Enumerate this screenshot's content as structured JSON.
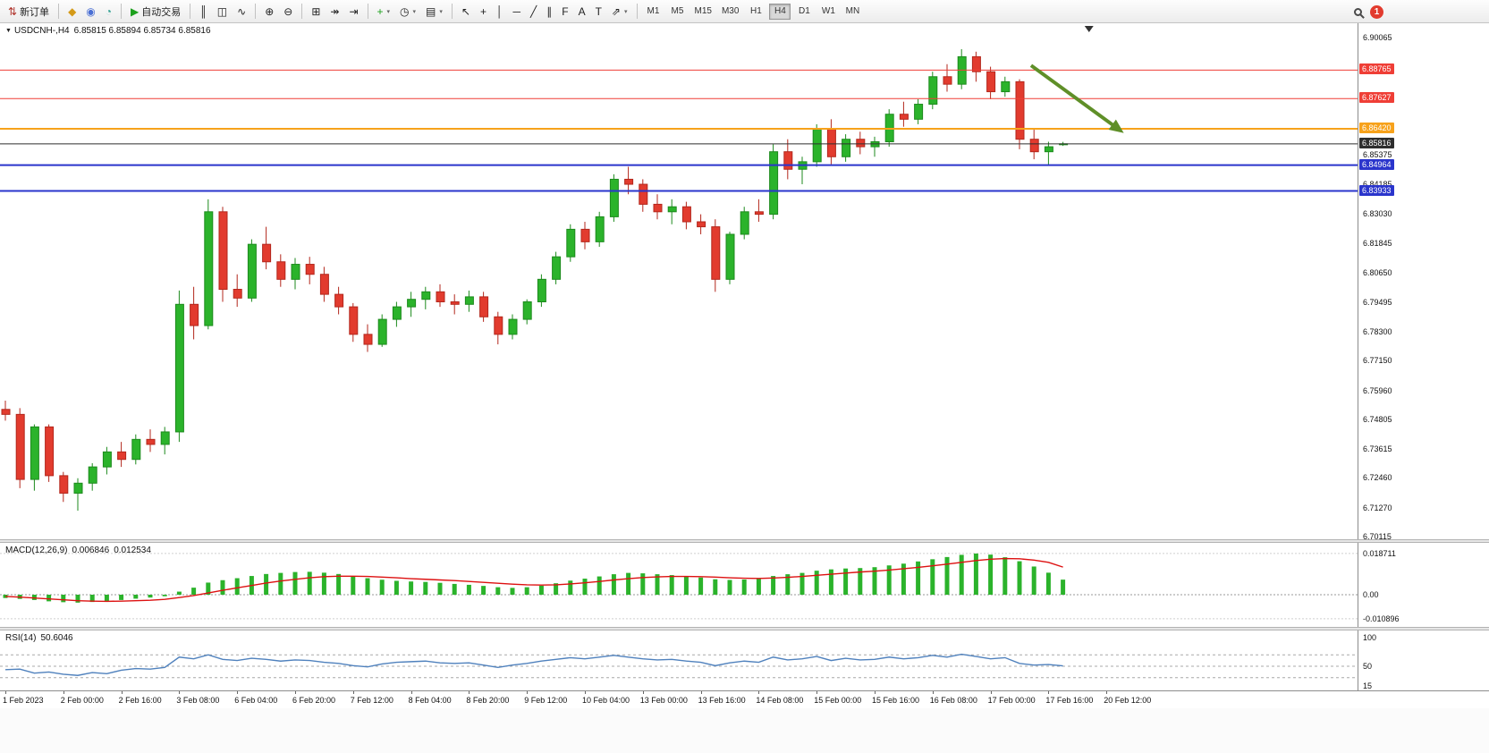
{
  "toolbar": {
    "groups": [
      [
        {
          "name": "new-order-button",
          "label": "新订单",
          "glyph": "⇅",
          "color": "#b0342c"
        }
      ],
      [
        {
          "name": "chart-window-icon",
          "glyph": "◆",
          "color": "#d49a18"
        },
        {
          "name": "profile-icon",
          "glyph": "◉",
          "color": "#4a6fd4"
        },
        {
          "name": "world-time-icon",
          "glyph": "◔",
          "color": "#2a9d8f"
        }
      ],
      [
        {
          "name": "autotrading-button",
          "label": "自动交易",
          "glyph": "▶",
          "color": "#1ca01c"
        }
      ],
      [
        {
          "name": "bar-chart-icon",
          "glyph": "║"
        },
        {
          "name": "candlestick-chart-icon",
          "glyph": "◫"
        },
        {
          "name": "line-chart-icon",
          "glyph": "∿"
        }
      ],
      [
        {
          "name": "zoom-in-icon",
          "glyph": "⊕"
        },
        {
          "name": "zoom-out-icon",
          "glyph": "⊖"
        }
      ],
      [
        {
          "name": "tile-windows-icon",
          "glyph": "⊞"
        },
        {
          "name": "auto-scroll-icon",
          "glyph": "↠"
        },
        {
          "name": "chart-shift-icon",
          "glyph": "⇥"
        }
      ],
      [
        {
          "name": "indicators-add-icon",
          "glyph": "+",
          "color": "#1ca01c",
          "dropdown": true
        },
        {
          "name": "periods-icon",
          "glyph": "◷",
          "dropdown": true
        },
        {
          "name": "templates-icon",
          "glyph": "▤",
          "dropdown": true
        }
      ],
      [
        {
          "name": "cursor-icon",
          "glyph": "↖"
        },
        {
          "name": "crosshair-icon",
          "glyph": "+"
        },
        {
          "name": "vertical-line-icon",
          "glyph": "│"
        },
        {
          "name": "horizontal-line-icon",
          "glyph": "─"
        },
        {
          "name": "trendline-icon",
          "glyph": "╱"
        },
        {
          "name": "channel-icon",
          "glyph": "∥"
        },
        {
          "name": "fibonacci-icon",
          "glyph": "F"
        },
        {
          "name": "text-icon",
          "glyph": "A"
        },
        {
          "name": "label-icon",
          "glyph": "T"
        },
        {
          "name": "arrows-icon",
          "glyph": "⇗",
          "dropdown": true
        }
      ]
    ],
    "timeframes": {
      "items": [
        "M1",
        "M5",
        "M15",
        "M30",
        "H1",
        "H4",
        "D1",
        "W1",
        "MN"
      ],
      "active": "H4"
    },
    "notification_count": "1"
  },
  "chart": {
    "title": "USDCNH-,H4",
    "ohlc": "6.85815 6.85894 6.85734 6.85816"
  },
  "chart_data": {
    "type": "candlestick",
    "symbol": "USDCNH",
    "timeframe": "H4",
    "ylim": [
      6.70115,
      6.90065
    ],
    "candles": [
      [
        6.752,
        6.7555,
        6.7475,
        6.75
      ],
      [
        6.75,
        6.7525,
        6.7205,
        6.724
      ],
      [
        6.724,
        6.746,
        6.7195,
        6.745
      ],
      [
        6.745,
        6.746,
        6.723,
        6.7255
      ],
      [
        6.7255,
        6.727,
        6.715,
        6.7185
      ],
      [
        6.7185,
        6.7245,
        6.7115,
        6.7225
      ],
      [
        6.7225,
        6.7305,
        6.7195,
        6.729
      ],
      [
        6.729,
        6.737,
        6.726,
        6.735
      ],
      [
        6.735,
        6.739,
        6.729,
        6.732
      ],
      [
        6.732,
        6.742,
        6.73,
        6.74
      ],
      [
        6.74,
        6.744,
        6.735,
        6.738
      ],
      [
        6.738,
        6.745,
        6.734,
        6.743
      ],
      [
        6.743,
        6.7995,
        6.739,
        6.794
      ],
      [
        6.794,
        6.801,
        6.78,
        6.7855
      ],
      [
        6.7855,
        6.836,
        6.784,
        6.831
      ],
      [
        6.831,
        6.833,
        6.795,
        6.8
      ],
      [
        6.8,
        6.806,
        6.793,
        6.7965
      ],
      [
        6.7965,
        6.82,
        6.795,
        6.818
      ],
      [
        6.818,
        6.825,
        6.808,
        6.811
      ],
      [
        6.811,
        6.814,
        6.801,
        6.804
      ],
      [
        6.804,
        6.8125,
        6.8,
        6.81
      ],
      [
        6.81,
        6.813,
        6.802,
        6.806
      ],
      [
        6.806,
        6.809,
        6.795,
        6.798
      ],
      [
        6.798,
        6.801,
        6.79,
        6.793
      ],
      [
        6.793,
        6.7945,
        6.779,
        6.782
      ],
      [
        6.782,
        6.786,
        6.775,
        6.778
      ],
      [
        6.778,
        6.79,
        6.777,
        6.788
      ],
      [
        6.788,
        6.795,
        6.785,
        6.793
      ],
      [
        6.793,
        6.799,
        6.789,
        6.796
      ],
      [
        6.796,
        6.801,
        6.792,
        6.799
      ],
      [
        6.799,
        6.802,
        6.793,
        6.795
      ],
      [
        6.795,
        6.798,
        6.79,
        6.794
      ],
      [
        6.794,
        6.7995,
        6.791,
        6.797
      ],
      [
        6.797,
        6.799,
        6.787,
        6.789
      ],
      [
        6.789,
        6.791,
        6.778,
        6.782
      ],
      [
        6.782,
        6.79,
        6.78,
        6.788
      ],
      [
        6.788,
        6.796,
        6.786,
        6.795
      ],
      [
        6.795,
        6.806,
        6.793,
        6.804
      ],
      [
        6.804,
        6.815,
        6.802,
        6.813
      ],
      [
        6.813,
        6.826,
        6.811,
        6.824
      ],
      [
        6.824,
        6.827,
        6.816,
        6.819
      ],
      [
        6.819,
        6.831,
        6.817,
        6.829
      ],
      [
        6.829,
        6.846,
        6.827,
        6.844
      ],
      [
        6.844,
        6.849,
        6.838,
        6.842
      ],
      [
        6.842,
        6.844,
        6.831,
        6.834
      ],
      [
        6.834,
        6.838,
        6.828,
        6.831
      ],
      [
        6.831,
        6.836,
        6.826,
        6.833
      ],
      [
        6.833,
        6.835,
        6.824,
        6.827
      ],
      [
        6.827,
        6.83,
        6.822,
        6.825
      ],
      [
        6.825,
        6.828,
        6.799,
        6.804
      ],
      [
        6.804,
        6.823,
        6.802,
        6.822
      ],
      [
        6.822,
        6.833,
        6.82,
        6.831
      ],
      [
        6.831,
        6.836,
        6.827,
        6.83
      ],
      [
        6.83,
        6.858,
        6.828,
        6.855
      ],
      [
        6.855,
        6.86,
        6.844,
        6.848
      ],
      [
        6.848,
        6.853,
        6.842,
        6.851
      ],
      [
        6.851,
        6.866,
        6.849,
        6.864
      ],
      [
        6.864,
        6.868,
        6.85,
        6.853
      ],
      [
        6.853,
        6.862,
        6.851,
        6.86
      ],
      [
        6.86,
        6.863,
        6.854,
        6.857
      ],
      [
        6.857,
        6.861,
        6.853,
        6.859
      ],
      [
        6.859,
        6.872,
        6.857,
        6.87
      ],
      [
        6.87,
        6.875,
        6.865,
        6.868
      ],
      [
        6.868,
        6.876,
        6.866,
        6.874
      ],
      [
        6.874,
        6.887,
        6.872,
        6.885
      ],
      [
        6.885,
        6.89,
        6.879,
        6.882
      ],
      [
        6.882,
        6.896,
        6.88,
        6.893
      ],
      [
        6.893,
        6.895,
        6.883,
        6.887
      ],
      [
        6.887,
        6.889,
        6.876,
        6.879
      ],
      [
        6.879,
        6.885,
        6.877,
        6.883
      ],
      [
        6.883,
        6.884,
        6.856,
        6.86
      ],
      [
        6.86,
        6.864,
        6.852,
        6.855
      ],
      [
        6.855,
        6.859,
        6.8495,
        6.857
      ],
      [
        6.85815,
        6.85894,
        6.85734,
        6.85816
      ]
    ],
    "time_labels": [
      "1 Feb 2023",
      "2 Feb 00:00",
      "2 Feb 16:00",
      "3 Feb 08:00",
      "6 Feb 04:00",
      "6 Feb 20:00",
      "7 Feb 12:00",
      "8 Feb 04:00",
      "8 Feb 20:00",
      "9 Feb 12:00",
      "10 Feb 04:00",
      "13 Feb 00:00",
      "13 Feb 16:00",
      "14 Feb 08:00",
      "15 Feb 00:00",
      "15 Feb 16:00",
      "16 Feb 08:00",
      "17 Feb 00:00",
      "17 Feb 16:00",
      "20 Feb 12:00"
    ],
    "price_ticks": [
      "6.90065",
      "6.85375",
      "6.84185",
      "6.83030",
      "6.81845",
      "6.80650",
      "6.79495",
      "6.78300",
      "6.77150",
      "6.75960",
      "6.74805",
      "6.73615",
      "6.72460",
      "6.71270",
      "6.70115"
    ],
    "hlines": [
      {
        "price": 6.88765,
        "label": "6.88765",
        "color": "#ef3e36",
        "label_bg": "#ef3e36",
        "width": 1
      },
      {
        "price": 6.87627,
        "label": "6.87627",
        "color": "#ef3e36",
        "label_bg": "#ef3e36",
        "width": 1
      },
      {
        "price": 6.8642,
        "label": "6.86420",
        "color": "#f7a21b",
        "label_bg": "#f7a21b",
        "width": 2
      },
      {
        "price": 6.85816,
        "label": "6.85816",
        "color": "#2e2e2e",
        "label_bg": "#2e2e2e",
        "width": 1
      },
      {
        "price": 6.84964,
        "label": "6.84964",
        "color": "#2a35cc",
        "label_bg": "#2a35cc",
        "width": 2
      },
      {
        "price": 6.83933,
        "label": "6.83933",
        "color": "#2a35cc",
        "label_bg": "#2a35cc",
        "width": 2
      }
    ],
    "current_price": "6.85816",
    "arrow": {
      "from_idx": 70.8,
      "from_price": 6.8895,
      "to_idx": 77.2,
      "to_price": 6.8625,
      "color": "#5f8f28",
      "width": 4
    },
    "shift_marker_idx": 74.8,
    "macd": {
      "label": "MACD(12,26,9)",
      "main_value": "0.006846",
      "signal_value": "0.012534",
      "axis": [
        {
          "v": 0.018711,
          "label": "0.018711"
        },
        {
          "v": 0,
          "label": "0.00"
        },
        {
          "v": -0.010896,
          "label": "-0.010896"
        }
      ],
      "hist": [
        -0.0015,
        -0.0019,
        -0.0024,
        -0.003,
        -0.0034,
        -0.0036,
        -0.0033,
        -0.0029,
        -0.0024,
        -0.0018,
        -0.0013,
        -0.0007,
        0.0014,
        0.0032,
        0.0055,
        0.0066,
        0.0075,
        0.0085,
        0.0094,
        0.0099,
        0.0103,
        0.0104,
        0.01,
        0.0094,
        0.0085,
        0.0075,
        0.0068,
        0.0063,
        0.006,
        0.0058,
        0.0054,
        0.0049,
        0.0045,
        0.004,
        0.0034,
        0.0031,
        0.0034,
        0.0041,
        0.0052,
        0.0064,
        0.0073,
        0.0083,
        0.0093,
        0.0099,
        0.0097,
        0.0093,
        0.0089,
        0.0084,
        0.0078,
        0.007,
        0.0067,
        0.0069,
        0.0073,
        0.0085,
        0.0093,
        0.0099,
        0.0109,
        0.0115,
        0.0119,
        0.0121,
        0.0125,
        0.0133,
        0.0141,
        0.0151,
        0.0161,
        0.0171,
        0.0181,
        0.0187,
        0.0182,
        0.017,
        0.0152,
        0.0128,
        0.01,
        0.006846
      ],
      "signal": [
        -0.0008,
        -0.0011,
        -0.0015,
        -0.0019,
        -0.0023,
        -0.0027,
        -0.0029,
        -0.003,
        -0.0029,
        -0.0027,
        -0.0025,
        -0.0021,
        -0.0013,
        -0.0004,
        0.0008,
        0.002,
        0.0031,
        0.0042,
        0.0053,
        0.0062,
        0.007,
        0.0077,
        0.0082,
        0.0084,
        0.0084,
        0.0083,
        0.008,
        0.0077,
        0.0073,
        0.007,
        0.0067,
        0.0064,
        0.006,
        0.0056,
        0.0052,
        0.0048,
        0.0045,
        0.0044,
        0.0045,
        0.0049,
        0.0054,
        0.006,
        0.0067,
        0.0073,
        0.0078,
        0.0081,
        0.0083,
        0.0083,
        0.0082,
        0.008,
        0.0077,
        0.0075,
        0.0074,
        0.0076,
        0.0079,
        0.0083,
        0.0088,
        0.0093,
        0.0098,
        0.0103,
        0.0107,
        0.0112,
        0.0118,
        0.0124,
        0.0131,
        0.0139,
        0.0147,
        0.0155,
        0.0161,
        0.0164,
        0.0163,
        0.0157,
        0.0147,
        0.012534
      ]
    },
    "rsi": {
      "label": "RSI(14)",
      "value": "50.6046",
      "levels": [
        70,
        50,
        30
      ],
      "axis": [
        {
          "v": 100,
          "label": "100"
        },
        {
          "v": 50,
          "label": "50"
        },
        {
          "v": 15,
          "label": "15"
        }
      ],
      "values": [
        44,
        45,
        38,
        40,
        36,
        34,
        39,
        37,
        43,
        46,
        45,
        48,
        66,
        63,
        70,
        62,
        60,
        64,
        62,
        59,
        61,
        60,
        57,
        55,
        51,
        49,
        54,
        57,
        58,
        59,
        56,
        55,
        56,
        52,
        48,
        52,
        55,
        59,
        62,
        65,
        63,
        66,
        69,
        66,
        63,
        61,
        62,
        59,
        57,
        51,
        56,
        59,
        57,
        66,
        61,
        63,
        67,
        60,
        64,
        61,
        62,
        66,
        63,
        65,
        69,
        66,
        71,
        67,
        63,
        65,
        55,
        52,
        53,
        50.6046
      ]
    }
  },
  "colors": {
    "up": "#2bb32b",
    "up_stroke": "#1d8a1d",
    "down": "#e23b2e",
    "down_stroke": "#b3271c",
    "macd_hist": "#2bb32b",
    "macd_signal": "#dd1111",
    "rsi_line": "#4f81bd"
  }
}
